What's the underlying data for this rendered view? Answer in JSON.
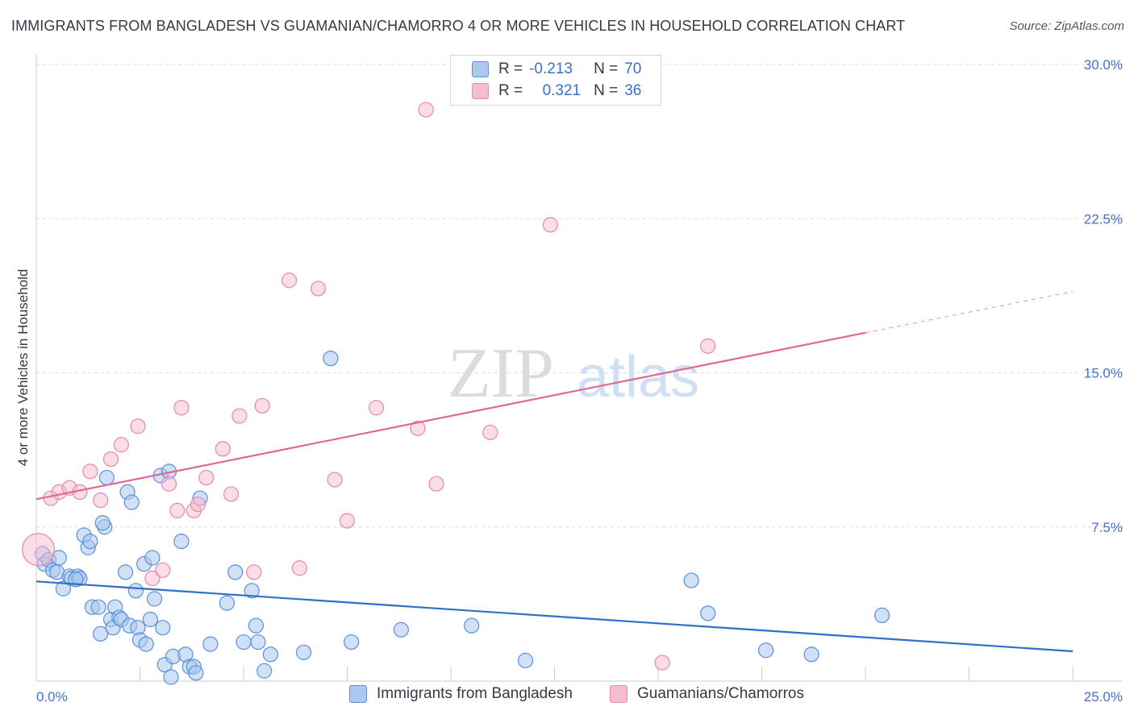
{
  "title": "IMMIGRANTS FROM BANGLADESH VS GUAMANIAN/CHAMORRO 4 OR MORE VEHICLES IN HOUSEHOLD CORRELATION CHART",
  "source": "Source: ZipAtlas.com",
  "watermark": {
    "zip": "ZIP",
    "atlas": "atlas"
  },
  "legend": {
    "r_label": "R =",
    "n_label": "N =",
    "rows": [
      {
        "r": "-0.213",
        "n": "70"
      },
      {
        "r": "0.321",
        "n": "36"
      }
    ]
  },
  "colors": {
    "blue_fill": "#aac8f0",
    "blue_stroke": "#5b8fd8",
    "blue_line": "#2f6fc8",
    "pink_fill": "#f6bcd0",
    "pink_stroke": "#e888a8",
    "pink_line": "#e06892",
    "grid": "#d9d9d9",
    "tick_text": "#4472c4"
  },
  "chart_data": {
    "type": "scatter",
    "ylabel": "4 or more Vehicles in Household",
    "xlim": [
      0,
      25
    ],
    "ylim": [
      0,
      30
    ],
    "x_tick_labels": [
      "0.0%",
      "25.0%"
    ],
    "y_ticks": [
      7.5,
      15.0,
      22.5,
      30.0
    ],
    "y_tick_labels": [
      "7.5%",
      "15.0%",
      "22.5%",
      "30.0%"
    ],
    "legend_labels": [
      "Immigrants from Bangladesh",
      "Guamanians/Chamorros"
    ],
    "series": [
      {
        "name": "Immigrants from Bangladesh",
        "r": -0.213,
        "n": 70,
        "trend": {
          "x0": 0,
          "y0": 4.85,
          "x1": 25,
          "y1": 1.45
        },
        "points": [
          [
            0.15,
            6.2
          ],
          [
            0.2,
            5.7
          ],
          [
            0.3,
            5.9
          ],
          [
            0.4,
            5.4
          ],
          [
            0.5,
            5.3
          ],
          [
            0.55,
            6.0
          ],
          [
            0.65,
            4.5
          ],
          [
            0.8,
            5.1
          ],
          [
            0.85,
            5.0
          ],
          [
            1.0,
            5.1
          ],
          [
            1.05,
            5.0
          ],
          [
            0.95,
            4.95
          ],
          [
            1.15,
            7.1
          ],
          [
            1.25,
            6.5
          ],
          [
            1.3,
            6.8
          ],
          [
            1.35,
            3.6
          ],
          [
            1.5,
            3.6
          ],
          [
            1.65,
            7.5
          ],
          [
            1.7,
            9.9
          ],
          [
            1.6,
            7.7
          ],
          [
            1.55,
            2.3
          ],
          [
            1.8,
            3.0
          ],
          [
            1.85,
            2.6
          ],
          [
            1.9,
            3.6
          ],
          [
            2.0,
            3.1
          ],
          [
            2.05,
            3.0
          ],
          [
            2.15,
            5.3
          ],
          [
            2.25,
            2.7
          ],
          [
            2.2,
            9.2
          ],
          [
            2.3,
            8.7
          ],
          [
            2.4,
            4.4
          ],
          [
            2.45,
            2.6
          ],
          [
            2.5,
            2.0
          ],
          [
            2.6,
            5.7
          ],
          [
            2.65,
            1.8
          ],
          [
            2.75,
            3.0
          ],
          [
            2.8,
            6.0
          ],
          [
            2.85,
            4.0
          ],
          [
            3.0,
            10.0
          ],
          [
            3.05,
            2.6
          ],
          [
            3.1,
            0.8
          ],
          [
            3.2,
            10.2
          ],
          [
            3.25,
            0.2
          ],
          [
            3.3,
            1.2
          ],
          [
            3.5,
            6.8
          ],
          [
            3.6,
            1.3
          ],
          [
            3.7,
            0.7
          ],
          [
            3.8,
            0.7
          ],
          [
            3.85,
            0.4
          ],
          [
            3.95,
            8.9
          ],
          [
            4.2,
            1.8
          ],
          [
            4.6,
            3.8
          ],
          [
            4.8,
            5.3
          ],
          [
            5.0,
            1.9
          ],
          [
            5.2,
            4.4
          ],
          [
            5.3,
            2.7
          ],
          [
            5.35,
            1.9
          ],
          [
            5.5,
            0.5
          ],
          [
            5.65,
            1.3
          ],
          [
            6.45,
            1.4
          ],
          [
            7.1,
            15.7
          ],
          [
            7.6,
            1.9
          ],
          [
            8.8,
            2.5
          ],
          [
            10.5,
            2.7
          ],
          [
            11.8,
            1.0
          ],
          [
            15.8,
            4.9
          ],
          [
            16.2,
            3.3
          ],
          [
            17.6,
            1.5
          ],
          [
            18.7,
            1.3
          ],
          [
            20.4,
            3.2
          ]
        ]
      },
      {
        "name": "Guamanians/Chamorros",
        "r": 0.321,
        "n": 36,
        "trend": {
          "x0": 0,
          "y0": 8.85,
          "x1": 20,
          "y1": 16.95,
          "x_dash_end": 25,
          "y_dash_end": 18.95
        },
        "points": [
          [
            0.05,
            6.4
          ],
          [
            0.35,
            8.9
          ],
          [
            0.55,
            9.2
          ],
          [
            0.8,
            9.4
          ],
          [
            1.05,
            9.2
          ],
          [
            1.3,
            10.2
          ],
          [
            1.55,
            8.8
          ],
          [
            1.8,
            10.8
          ],
          [
            2.05,
            11.5
          ],
          [
            2.45,
            12.4
          ],
          [
            2.8,
            5.0
          ],
          [
            3.05,
            5.4
          ],
          [
            3.2,
            9.6
          ],
          [
            3.4,
            8.3
          ],
          [
            3.5,
            13.3
          ],
          [
            3.8,
            8.3
          ],
          [
            3.9,
            8.6
          ],
          [
            4.1,
            9.9
          ],
          [
            4.5,
            11.3
          ],
          [
            4.7,
            9.1
          ],
          [
            4.9,
            12.9
          ],
          [
            5.25,
            5.3
          ],
          [
            5.45,
            13.4
          ],
          [
            6.1,
            19.5
          ],
          [
            6.35,
            5.5
          ],
          [
            6.8,
            19.1
          ],
          [
            7.2,
            9.8
          ],
          [
            7.5,
            7.8
          ],
          [
            8.2,
            13.3
          ],
          [
            9.2,
            12.3
          ],
          [
            9.4,
            27.8
          ],
          [
            9.65,
            9.6
          ],
          [
            10.95,
            12.1
          ],
          [
            12.4,
            22.2
          ],
          [
            15.1,
            0.9
          ],
          [
            16.2,
            16.3
          ]
        ]
      }
    ]
  }
}
